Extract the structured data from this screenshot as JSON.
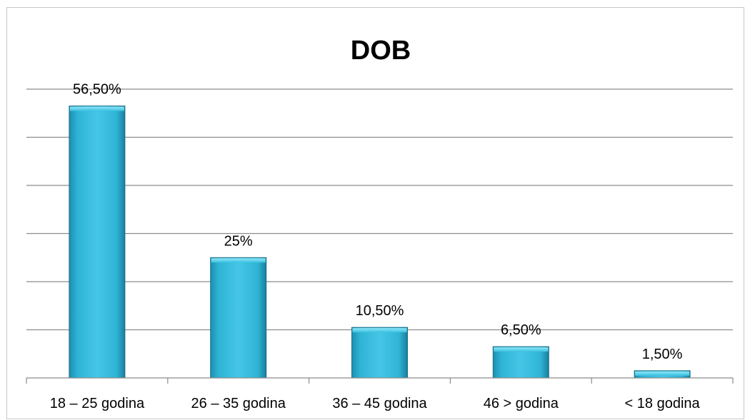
{
  "chart_data": {
    "type": "bar",
    "title": "DOB",
    "categories": [
      "18 – 25 godina",
      "26 – 35 godina",
      "36 – 45 godina",
      "46 > godina",
      "< 18 godina"
    ],
    "values": [
      56.5,
      25,
      10.5,
      6.5,
      1.5
    ],
    "data_labels": [
      "56,50%",
      "25%",
      "10,50%",
      "6,50%",
      "1,50%"
    ],
    "ylim": [
      0,
      60
    ],
    "y_gridline_step": 10,
    "grid": true,
    "legend": "none",
    "colors": {
      "bar_fill_top": "#5fd3ee",
      "bar_fill": "#2fb4d6",
      "bar_fill_dark": "#1d8fb0",
      "bar_edge": "#1a6f88"
    }
  }
}
